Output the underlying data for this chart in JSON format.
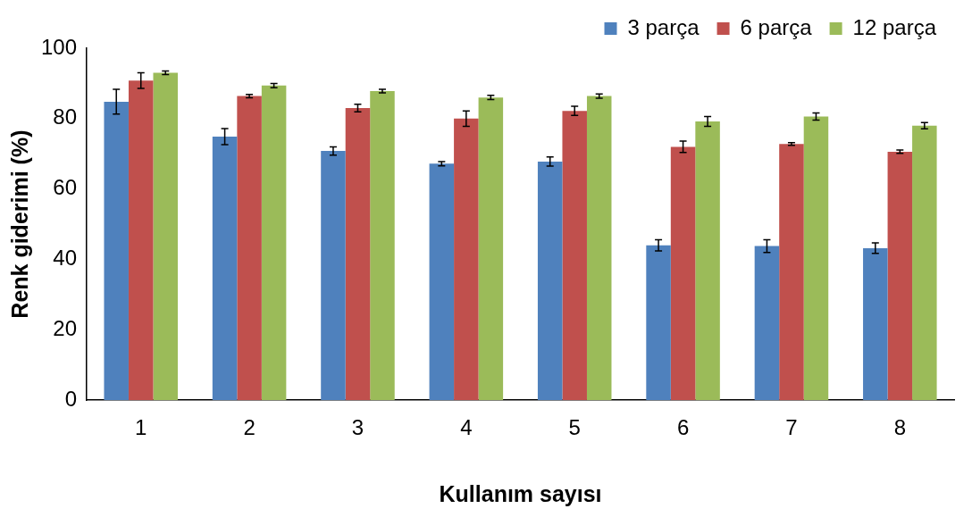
{
  "chart_data": {
    "type": "bar",
    "xlabel": "Kullanım sayısı",
    "ylabel": "Renk giderimi (%)",
    "categories": [
      "1",
      "2",
      "3",
      "4",
      "5",
      "6",
      "7",
      "8"
    ],
    "ylim": [
      0,
      100
    ],
    "yticks": [
      0,
      20,
      40,
      60,
      80,
      100
    ],
    "legend": "top right",
    "series": [
      {
        "name": "3 parça",
        "color": "#4f81bd",
        "values": [
          84.8,
          74.9,
          70.8,
          67.2,
          67.8,
          44,
          43.8,
          43.2
        ],
        "errors": [
          3.5,
          2.3,
          1.2,
          0.6,
          1.3,
          1.6,
          1.8,
          1.5
        ]
      },
      {
        "name": "6 parça",
        "color": "#c0504d",
        "values": [
          90.8,
          86.4,
          83,
          80,
          82.2,
          72,
          72.8,
          70.6
        ],
        "errors": [
          2.2,
          0.5,
          1.1,
          2.2,
          1.3,
          1.6,
          0.4,
          0.5
        ]
      },
      {
        "name": "12 parça",
        "color": "#9bbb59",
        "values": [
          93,
          89.4,
          87.8,
          86,
          86.4,
          79.2,
          80.6,
          78
        ],
        "errors": [
          0.5,
          0.6,
          0.5,
          0.6,
          0.6,
          1.4,
          1,
          0.9
        ]
      }
    ]
  }
}
